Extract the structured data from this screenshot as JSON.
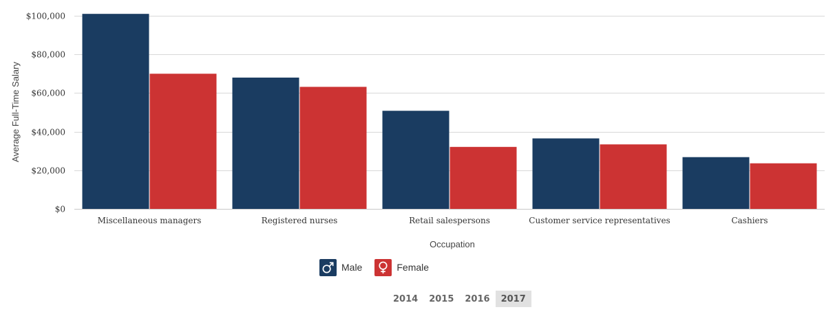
{
  "chart_data": {
    "type": "bar",
    "title": "",
    "xlabel": "Occupation",
    "ylabel": "Average Full-Time Salary",
    "ylim": [
      0,
      100000
    ],
    "yticks": [
      0,
      20000,
      40000,
      60000,
      80000,
      100000
    ],
    "ytick_labels": [
      "$0",
      "$20,000",
      "$40,000",
      "$60,000",
      "$80,000",
      "$100,000"
    ],
    "categories": [
      "Miscellaneous managers",
      "Registered nurses",
      "Retail salespersons",
      "Customer service representatives",
      "Cashiers"
    ],
    "series": [
      {
        "name": "Male",
        "color": "#1a3c61",
        "icon": "male-symbol-icon",
        "values": [
          101000,
          68000,
          50800,
          36500,
          26800
        ]
      },
      {
        "name": "Female",
        "color": "#cc3333",
        "icon": "female-symbol-icon",
        "values": [
          70000,
          63200,
          32100,
          33400,
          23600
        ]
      }
    ],
    "grid": true,
    "legend_position": "bottom-center"
  },
  "year_selector": {
    "options": [
      "2014",
      "2015",
      "2016",
      "2017"
    ],
    "selected": "2017"
  }
}
